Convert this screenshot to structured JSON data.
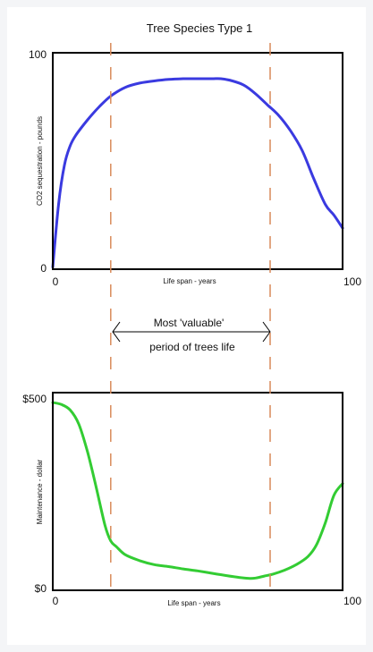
{
  "colors": {
    "page_bg": "#f4f5f7",
    "panel_bg": "#ffffff",
    "frame": "#000000",
    "marker": "#d98a5a",
    "co2_line": "#3a3ae0",
    "maintenance_line": "#33cc33"
  },
  "annotation": {
    "line1": "Most 'valuable'",
    "line2": "period of trees life",
    "arrow": "double-headed",
    "markers_x": [
      20,
      75
    ]
  },
  "chart_data": [
    {
      "type": "line",
      "title": "Tree Species Type 1",
      "xlabel": "Life span - years",
      "ylabel": "CO2 sequestration - pounds",
      "xlim": [
        0,
        100
      ],
      "ylim": [
        0,
        100
      ],
      "xticks": [
        "0",
        "100"
      ],
      "yticks": [
        "0",
        "100"
      ],
      "grid": false,
      "series": [
        {
          "color": "#3a3ae0",
          "x": [
            0,
            2,
            4,
            6,
            8,
            12,
            16,
            20,
            25,
            30,
            35,
            40,
            45,
            50,
            55,
            58,
            62,
            66,
            70,
            74,
            78,
            82,
            86,
            90,
            94,
            97,
            100
          ],
          "y": [
            1,
            30,
            48,
            57,
            62,
            69,
            75,
            80,
            84,
            86,
            87,
            87.7,
            88,
            88,
            88,
            88,
            87,
            85,
            81,
            76,
            71,
            64,
            55,
            42,
            30,
            25,
            19
          ]
        }
      ]
    },
    {
      "type": "line",
      "title": "",
      "xlabel": "Life span - years",
      "ylabel": "Maintenance - dollar",
      "xlim": [
        0,
        100
      ],
      "ylim": [
        0,
        500
      ],
      "xticks": [
        "0",
        "100"
      ],
      "yticks": [
        "$0",
        "$500"
      ],
      "grid": false,
      "series": [
        {
          "color": "#33cc33",
          "x": [
            0,
            3,
            6,
            9,
            12,
            15,
            18,
            20,
            22,
            25,
            30,
            35,
            40,
            45,
            50,
            55,
            60,
            65,
            68,
            70,
            73,
            76,
            80,
            84,
            88,
            91,
            94,
            97,
            100
          ],
          "y": [
            475,
            470,
            456,
            420,
            350,
            260,
            165,
            125,
            110,
            90,
            75,
            65,
            60,
            54,
            49,
            43,
            37,
            32,
            30,
            31,
            36,
            41,
            51,
            65,
            85,
            115,
            170,
            240,
            270
          ]
        }
      ]
    }
  ]
}
